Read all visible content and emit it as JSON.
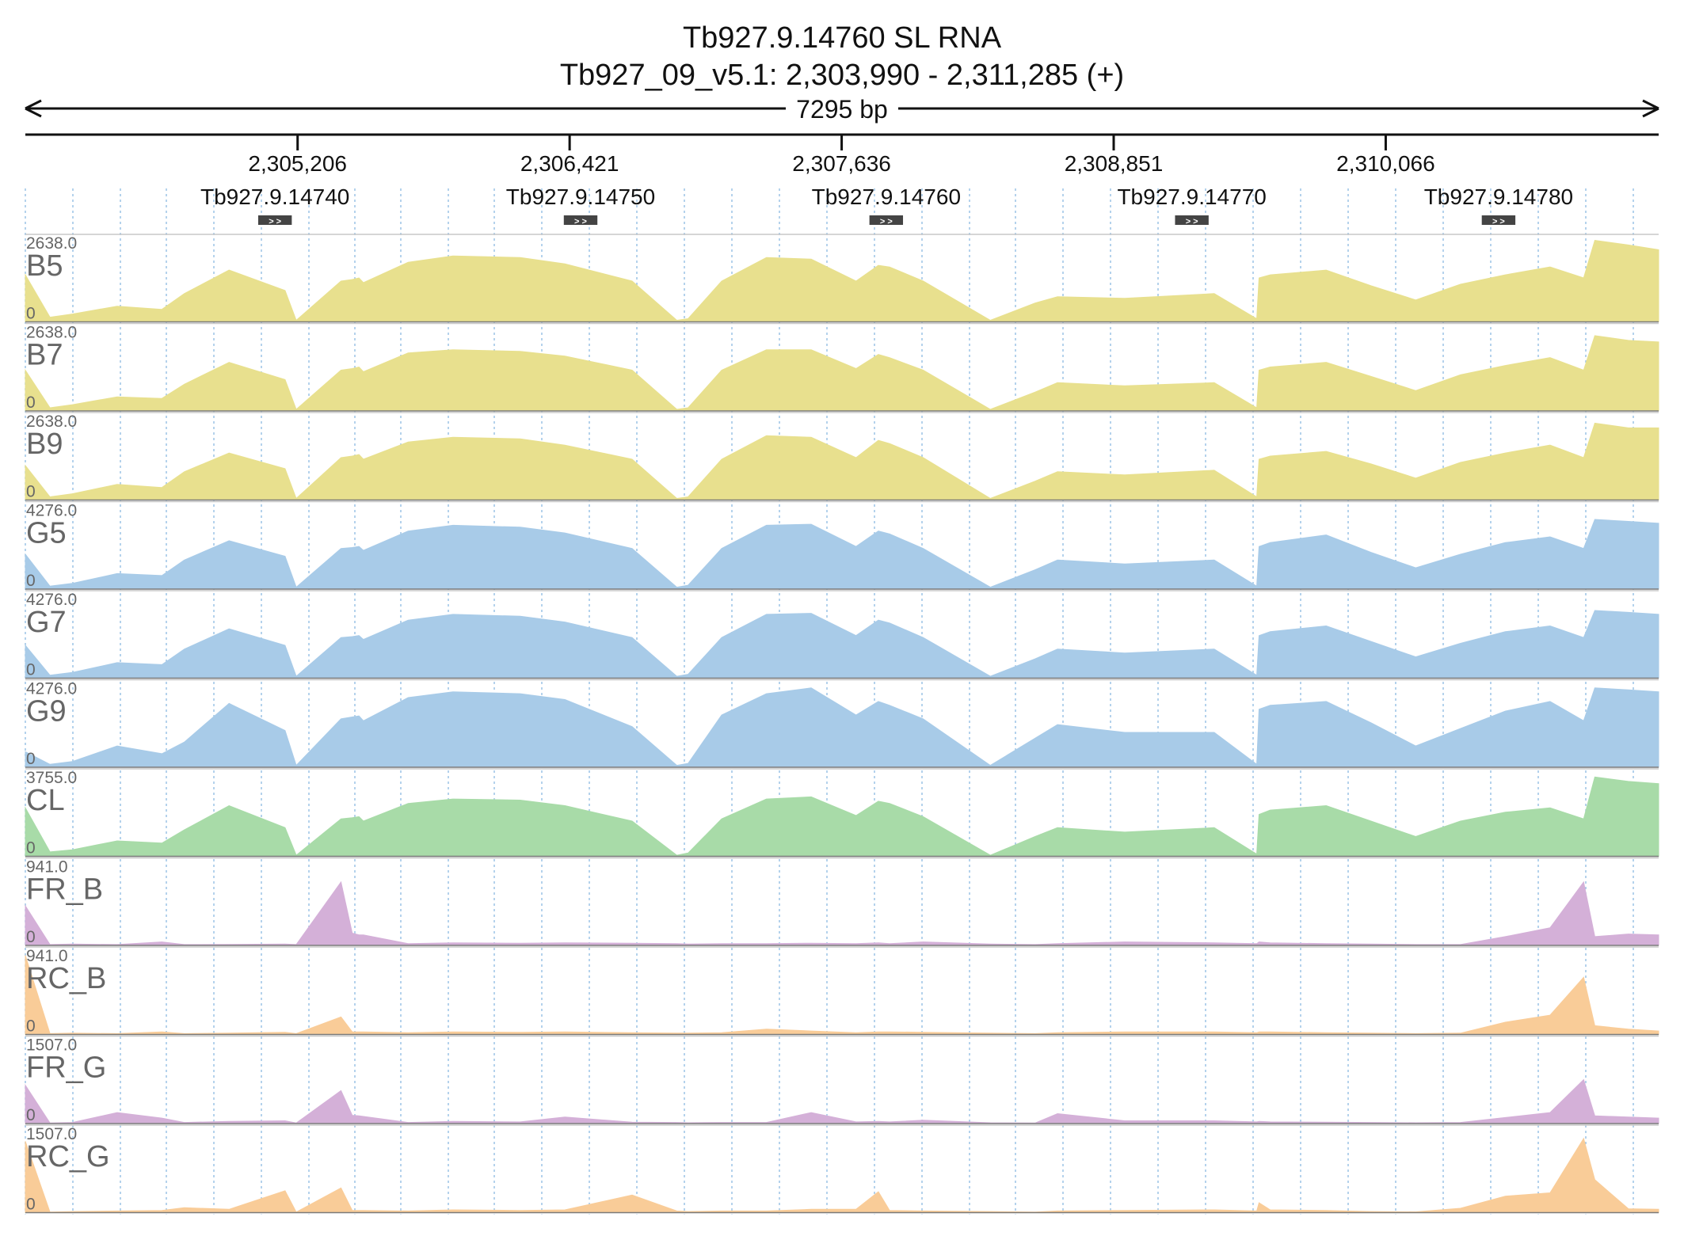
{
  "header": {
    "title": "Tb927.9.14760  SL RNA",
    "locus": "Tb927_09_v5.1: 2,303,990 - 2,311,285 (+)",
    "span_label": "7295 bp"
  },
  "ruler": {
    "ticks": [
      {
        "pos": 2305206,
        "label": "2,305,206"
      },
      {
        "pos": 2306421,
        "label": "2,306,421"
      },
      {
        "pos": 2307636,
        "label": "2,307,636"
      },
      {
        "pos": 2308851,
        "label": "2,308,851"
      },
      {
        "pos": 2310066,
        "label": "2,310,066"
      }
    ]
  },
  "chart_data": {
    "type": "area",
    "chromosome": "Tb927_09_v5.1",
    "xlim": [
      2303990,
      2311285
    ],
    "genes": [
      {
        "name": "Tb927.9.14740",
        "start": 2305030,
        "end": 2305180,
        "strand": "+"
      },
      {
        "name": "Tb927.9.14750",
        "start": 2306395,
        "end": 2306545,
        "strand": "+"
      },
      {
        "name": "Tb927.9.14760",
        "start": 2307760,
        "end": 2307910,
        "strand": "+"
      },
      {
        "name": "Tb927.9.14770",
        "start": 2309125,
        "end": 2309275,
        "strand": "+"
      },
      {
        "name": "Tb927.9.14780",
        "start": 2310495,
        "end": 2310645,
        "strand": "+"
      }
    ],
    "x": [
      2303990,
      2304100,
      2304200,
      2304400,
      2304600,
      2304700,
      2304900,
      2305150,
      2305200,
      2305400,
      2305450,
      2305480,
      2305500,
      2305700,
      2305900,
      2306200,
      2306400,
      2306700,
      2306900,
      2306950,
      2307100,
      2307300,
      2307500,
      2307700,
      2307800,
      2307850,
      2308000,
      2308300,
      2308500,
      2308600,
      2308900,
      2309300,
      2309490,
      2309500,
      2309550,
      2309800,
      2310000,
      2310200,
      2310400,
      2310600,
      2310800,
      2310950,
      2311000,
      2311150,
      2311285
    ],
    "series": [
      {
        "name": "B5",
        "color": "#e8e08e",
        "ymax": 2638.0,
        "values": [
          1500,
          150,
          250,
          500,
          400,
          900,
          1650,
          1000,
          50,
          1300,
          1350,
          1400,
          1250,
          1900,
          2100,
          2050,
          1850,
          1300,
          50,
          100,
          1300,
          2050,
          2000,
          1300,
          1800,
          1750,
          1300,
          50,
          600,
          800,
          750,
          900,
          100,
          1400,
          1500,
          1650,
          1150,
          700,
          1200,
          1500,
          1750,
          1400,
          2600,
          2450,
          2300
        ]
      },
      {
        "name": "B7",
        "color": "#e8e08e",
        "ymax": 2638.0,
        "values": [
          1300,
          100,
          200,
          450,
          400,
          850,
          1550,
          1000,
          50,
          1300,
          1350,
          1400,
          1250,
          1850,
          1950,
          1900,
          1750,
          1300,
          50,
          100,
          1300,
          1950,
          1950,
          1350,
          1800,
          1700,
          1300,
          50,
          600,
          900,
          800,
          900,
          100,
          1300,
          1400,
          1550,
          1100,
          650,
          1150,
          1450,
          1700,
          1300,
          2400,
          2250,
          2200
        ]
      },
      {
        "name": "B9",
        "color": "#e8e08e",
        "ymax": 2638.0,
        "values": [
          1100,
          100,
          200,
          500,
          400,
          900,
          1500,
          1000,
          50,
          1350,
          1400,
          1450,
          1300,
          1850,
          2000,
          1950,
          1750,
          1300,
          50,
          100,
          1300,
          2050,
          2000,
          1350,
          1900,
          1800,
          1350,
          50,
          600,
          900,
          800,
          950,
          100,
          1300,
          1400,
          1550,
          1150,
          700,
          1200,
          1500,
          1750,
          1350,
          2450,
          2300,
          2300
        ]
      },
      {
        "name": "G5",
        "color": "#a8cbe8",
        "ymax": 4276.0,
        "values": [
          1800,
          150,
          300,
          800,
          700,
          1500,
          2500,
          1700,
          100,
          2100,
          2150,
          2200,
          2000,
          3000,
          3300,
          3200,
          2900,
          2100,
          100,
          200,
          2100,
          3300,
          3350,
          2200,
          3000,
          2850,
          2100,
          100,
          1000,
          1500,
          1300,
          1500,
          150,
          2200,
          2400,
          2800,
          1900,
          1100,
          1800,
          2400,
          2700,
          2100,
          3600,
          3500,
          3400
        ]
      },
      {
        "name": "G7",
        "color": "#a8cbe8",
        "ymax": 4276.0,
        "values": [
          1700,
          150,
          300,
          800,
          700,
          1500,
          2550,
          1700,
          100,
          2100,
          2150,
          2200,
          2000,
          3000,
          3300,
          3200,
          2900,
          2100,
          100,
          200,
          2100,
          3300,
          3350,
          2200,
          3000,
          2850,
          2100,
          100,
          1000,
          1500,
          1300,
          1500,
          150,
          2200,
          2400,
          2700,
          1900,
          1100,
          1800,
          2400,
          2700,
          2100,
          3500,
          3400,
          3300
        ]
      },
      {
        "name": "G9",
        "color": "#a8cbe8",
        "ymax": 4276.0,
        "values": [
          800,
          150,
          300,
          1100,
          700,
          1300,
          3300,
          1900,
          100,
          2500,
          2600,
          2650,
          2400,
          3600,
          3900,
          3800,
          3500,
          2100,
          100,
          200,
          2700,
          3800,
          4100,
          2700,
          3400,
          3200,
          2500,
          100,
          1500,
          2200,
          1800,
          1800,
          150,
          3000,
          3200,
          3400,
          2300,
          1100,
          2000,
          2900,
          3400,
          2400,
          4100,
          4000,
          3900
        ]
      },
      {
        "name": "CL",
        "color": "#a8dba8",
        "ymax": 3755.0,
        "values": [
          2200,
          200,
          300,
          700,
          600,
          1200,
          2300,
          1300,
          50,
          1700,
          1750,
          1800,
          1600,
          2400,
          2600,
          2550,
          2300,
          1600,
          50,
          150,
          1700,
          2600,
          2700,
          1850,
          2500,
          2400,
          1800,
          50,
          900,
          1300,
          1100,
          1300,
          100,
          1900,
          2100,
          2300,
          1600,
          900,
          1600,
          2000,
          2200,
          1700,
          3600,
          3400,
          3300
        ]
      },
      {
        "name": "FR_B",
        "color": "#d4b0d8",
        "ymax": 941.0,
        "values": [
          450,
          10,
          15,
          10,
          40,
          10,
          12,
          15,
          10,
          720,
          140,
          120,
          120,
          20,
          30,
          25,
          30,
          25,
          20,
          15,
          20,
          20,
          25,
          20,
          30,
          20,
          40,
          15,
          10,
          20,
          40,
          30,
          20,
          40,
          30,
          20,
          15,
          10,
          10,
          100,
          200,
          720,
          100,
          130,
          120
        ]
      },
      {
        "name": "RC_B",
        "color": "#f9cc98",
        "ymax": 941.0,
        "values": [
          900,
          10,
          15,
          10,
          30,
          10,
          15,
          25,
          10,
          200,
          30,
          30,
          30,
          20,
          30,
          25,
          30,
          20,
          15,
          15,
          20,
          60,
          40,
          20,
          30,
          30,
          25,
          15,
          10,
          20,
          30,
          30,
          20,
          30,
          30,
          20,
          15,
          10,
          15,
          140,
          220,
          650,
          100,
          60,
          40
        ]
      },
      {
        "name": "FR_G",
        "color": "#d4b0d8",
        "ymax": 1507.0,
        "values": [
          700,
          10,
          20,
          200,
          100,
          20,
          40,
          50,
          10,
          600,
          150,
          140,
          130,
          20,
          40,
          30,
          120,
          25,
          20,
          15,
          20,
          20,
          200,
          30,
          40,
          30,
          60,
          15,
          10,
          180,
          50,
          50,
          30,
          40,
          30,
          25,
          20,
          15,
          20,
          110,
          200,
          800,
          140,
          120,
          100
        ]
      },
      {
        "name": "RC_G",
        "color": "#f9cc98",
        "ymax": 1507.0,
        "values": [
          1300,
          10,
          20,
          30,
          40,
          90,
          60,
          400,
          10,
          450,
          40,
          40,
          40,
          30,
          50,
          40,
          50,
          320,
          30,
          20,
          30,
          30,
          60,
          60,
          380,
          40,
          30,
          20,
          10,
          30,
          40,
          50,
          30,
          180,
          50,
          40,
          20,
          15,
          80,
          300,
          360,
          1350,
          600,
          70,
          60
        ]
      }
    ]
  }
}
